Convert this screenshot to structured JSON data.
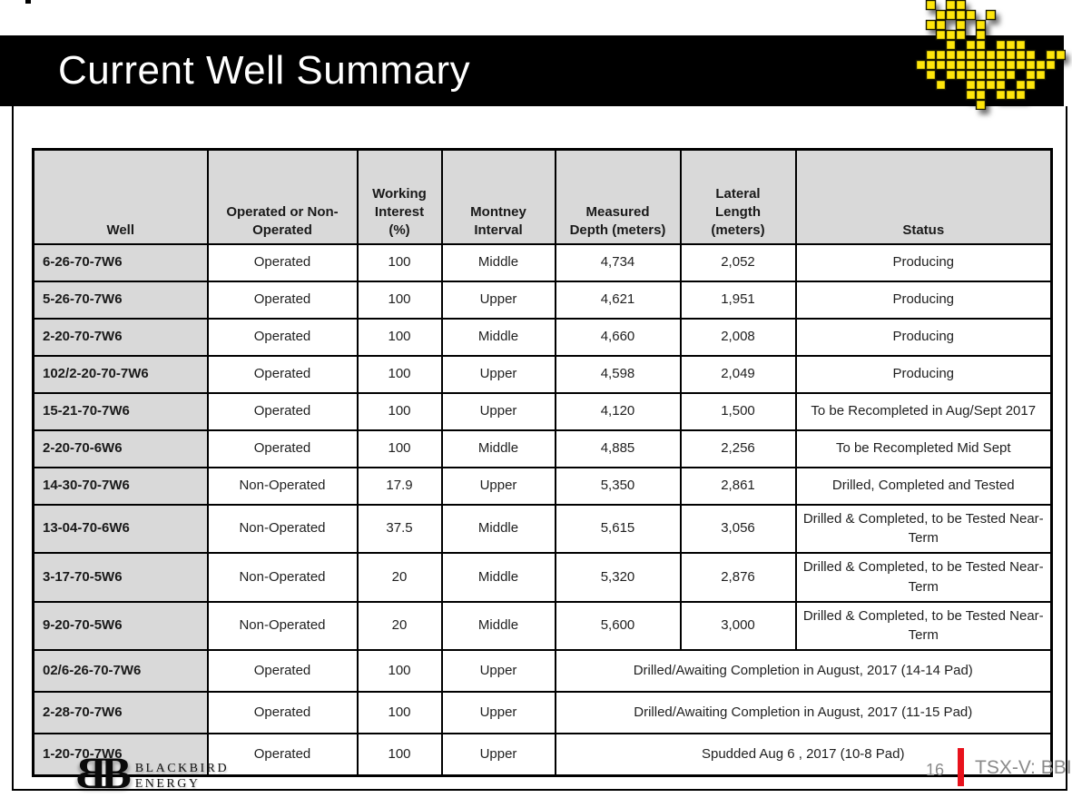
{
  "slide": {
    "title": "Current Well Summary"
  },
  "colors": {
    "accent_red": "#e8121c",
    "logo_yellow": "#ffe60a",
    "header_gray": "#d9d9d9",
    "footer_text_gray": "#8a8a8a",
    "title_bar_black": "#000000"
  },
  "icons": {
    "bird_logo": "blackbird-pixel-bird-icon"
  },
  "table": {
    "headers": [
      "Well",
      "Operated or Non-\nOperated",
      "Working\nInterest\n(%)",
      "Montney\nInterval",
      "Measured\nDepth (meters)",
      "Lateral\nLength\n(meters)",
      "Status"
    ],
    "rows": [
      {
        "well": "6-26-70-7W6",
        "operated": "Operated",
        "working_interest": "100",
        "interval": "Middle",
        "measured_depth": "4,734",
        "lateral_length": "2,052",
        "status": "Producing"
      },
      {
        "well": "5-26-70-7W6",
        "operated": "Operated",
        "working_interest": "100",
        "interval": "Upper",
        "measured_depth": "4,621",
        "lateral_length": "1,951",
        "status": "Producing"
      },
      {
        "well": "2-20-70-7W6",
        "operated": "Operated",
        "working_interest": "100",
        "interval": "Middle",
        "measured_depth": "4,660",
        "lateral_length": "2,008",
        "status": "Producing"
      },
      {
        "well": "102/2-20-70-7W6",
        "operated": "Operated",
        "working_interest": "100",
        "interval": "Upper",
        "measured_depth": "4,598",
        "lateral_length": "2,049",
        "status": "Producing"
      },
      {
        "well": "15-21-70-7W6",
        "operated": "Operated",
        "working_interest": "100",
        "interval": "Upper",
        "measured_depth": "4,120",
        "lateral_length": "1,500",
        "status": "To be Recompleted in Aug/Sept 2017"
      },
      {
        "well": "2-20-70-6W6",
        "operated": "Operated",
        "working_interest": "100",
        "interval": "Middle",
        "measured_depth": "4,885",
        "lateral_length": "2,256",
        "status": "To be Recompleted Mid Sept"
      },
      {
        "well": "14-30-70-7W6",
        "operated": "Non-Operated",
        "working_interest": "17.9",
        "interval": "Upper",
        "measured_depth": "5,350",
        "lateral_length": "2,861",
        "status": "Drilled, Completed and Tested"
      },
      {
        "well": "13-04-70-6W6",
        "operated": "Non-Operated",
        "working_interest": "37.5",
        "interval": "Middle",
        "measured_depth": "5,615",
        "lateral_length": "3,056",
        "status": "Drilled & Completed, to be Tested Near-Term"
      },
      {
        "well": "3-17-70-5W6",
        "operated": "Non-Operated",
        "working_interest": "20",
        "interval": "Middle",
        "measured_depth": "5,320",
        "lateral_length": "2,876",
        "status": "Drilled & Completed, to be Tested Near-Term"
      },
      {
        "well": "9-20-70-5W6",
        "operated": "Non-Operated",
        "working_interest": "20",
        "interval": "Middle",
        "measured_depth": "5,600",
        "lateral_length": "3,000",
        "status": "Drilled & Completed, to be Tested Near-Term"
      },
      {
        "well": "02/6-26-70-7W6",
        "operated": "Operated",
        "working_interest": "100",
        "interval": "Upper",
        "status_merged": "Drilled/Awaiting Completion in August, 2017 (14-14 Pad)"
      },
      {
        "well": "2-28-70-7W6",
        "operated": "Operated",
        "working_interest": "100",
        "interval": "Upper",
        "status_merged": "Drilled/Awaiting Completion in August, 2017 (11-15 Pad)"
      },
      {
        "well": "1-20-70-7W6",
        "operated": "Operated",
        "working_interest": "100",
        "interval": "Upper",
        "status_merged": "Spudded Aug 6 , 2017 (10-8 Pad)"
      }
    ]
  },
  "footer": {
    "monogram_left": "B",
    "monogram_right": "B",
    "brand_line1": "BLACKBIRD",
    "brand_line2": "ENERGY",
    "page_number": "16",
    "ticker": "TSX-V: BBI"
  }
}
